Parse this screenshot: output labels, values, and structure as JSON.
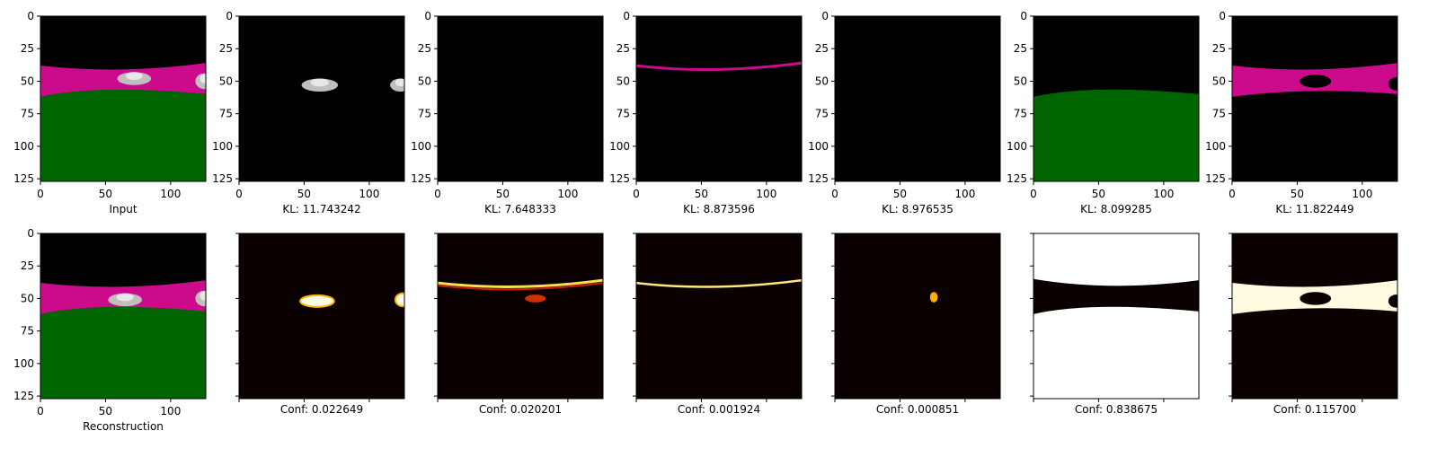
{
  "figure": {
    "background": "#ffffff"
  },
  "chart_data": {
    "type": "image-grid",
    "rows": 2,
    "columns": 7,
    "image_axis": {
      "xlim": [
        0,
        127
      ],
      "ylim": [
        127,
        0
      ],
      "x_ticks": [
        0,
        50,
        100
      ],
      "y_ticks": [
        0,
        25,
        50,
        75,
        100,
        125
      ]
    },
    "colors": {
      "black": "#000000",
      "magenta": "#cc0a8c",
      "green": "#006400",
      "heat_background": "#0b0000",
      "heat_hot": "#ffffe6",
      "white": "#ffffff"
    },
    "panels": [
      {
        "row": 0,
        "col": 0,
        "label": "Input",
        "kind": "input",
        "show_x_tick_labels": true,
        "show_y_tick_labels": true
      },
      {
        "row": 0,
        "col": 1,
        "label": "KL: 11.743242",
        "kind": "mask-car",
        "show_x_tick_labels": true,
        "show_y_tick_labels": true
      },
      {
        "row": 0,
        "col": 2,
        "label": "KL: 7.648333",
        "kind": "mask-empty",
        "show_x_tick_labels": true,
        "show_y_tick_labels": true
      },
      {
        "row": 0,
        "col": 3,
        "label": "KL: 8.873596",
        "kind": "mask-edge",
        "show_x_tick_labels": true,
        "show_y_tick_labels": true
      },
      {
        "row": 0,
        "col": 4,
        "label": "KL: 8.976535",
        "kind": "mask-empty",
        "show_x_tick_labels": true,
        "show_y_tick_labels": true
      },
      {
        "row": 0,
        "col": 5,
        "label": "KL: 8.099285",
        "kind": "mask-ground",
        "show_x_tick_labels": true,
        "show_y_tick_labels": true
      },
      {
        "row": 0,
        "col": 6,
        "label": "KL: 11.822449",
        "kind": "mask-road",
        "show_x_tick_labels": true,
        "show_y_tick_labels": true
      },
      {
        "row": 1,
        "col": 0,
        "label": "Reconstruction",
        "kind": "reconstruction",
        "show_x_tick_labels": true,
        "show_y_tick_labels": true
      },
      {
        "row": 1,
        "col": 1,
        "label": "Conf: 0.022649",
        "kind": "heat-car",
        "show_x_tick_labels": false,
        "show_y_tick_labels": false
      },
      {
        "row": 1,
        "col": 2,
        "label": "Conf: 0.020201",
        "kind": "heat-edge-strong",
        "show_x_tick_labels": false,
        "show_y_tick_labels": false
      },
      {
        "row": 1,
        "col": 3,
        "label": "Conf: 0.001924",
        "kind": "heat-edge",
        "show_x_tick_labels": false,
        "show_y_tick_labels": false
      },
      {
        "row": 1,
        "col": 4,
        "label": "Conf: 0.000851",
        "kind": "heat-spot",
        "show_x_tick_labels": false,
        "show_y_tick_labels": false
      },
      {
        "row": 1,
        "col": 5,
        "label": "Conf: 0.838675",
        "kind": "heat-ground",
        "show_x_tick_labels": false,
        "show_y_tick_labels": false
      },
      {
        "row": 1,
        "col": 6,
        "label": "Conf: 0.115700",
        "kind": "heat-road",
        "show_x_tick_labels": false,
        "show_y_tick_labels": false
      }
    ]
  }
}
